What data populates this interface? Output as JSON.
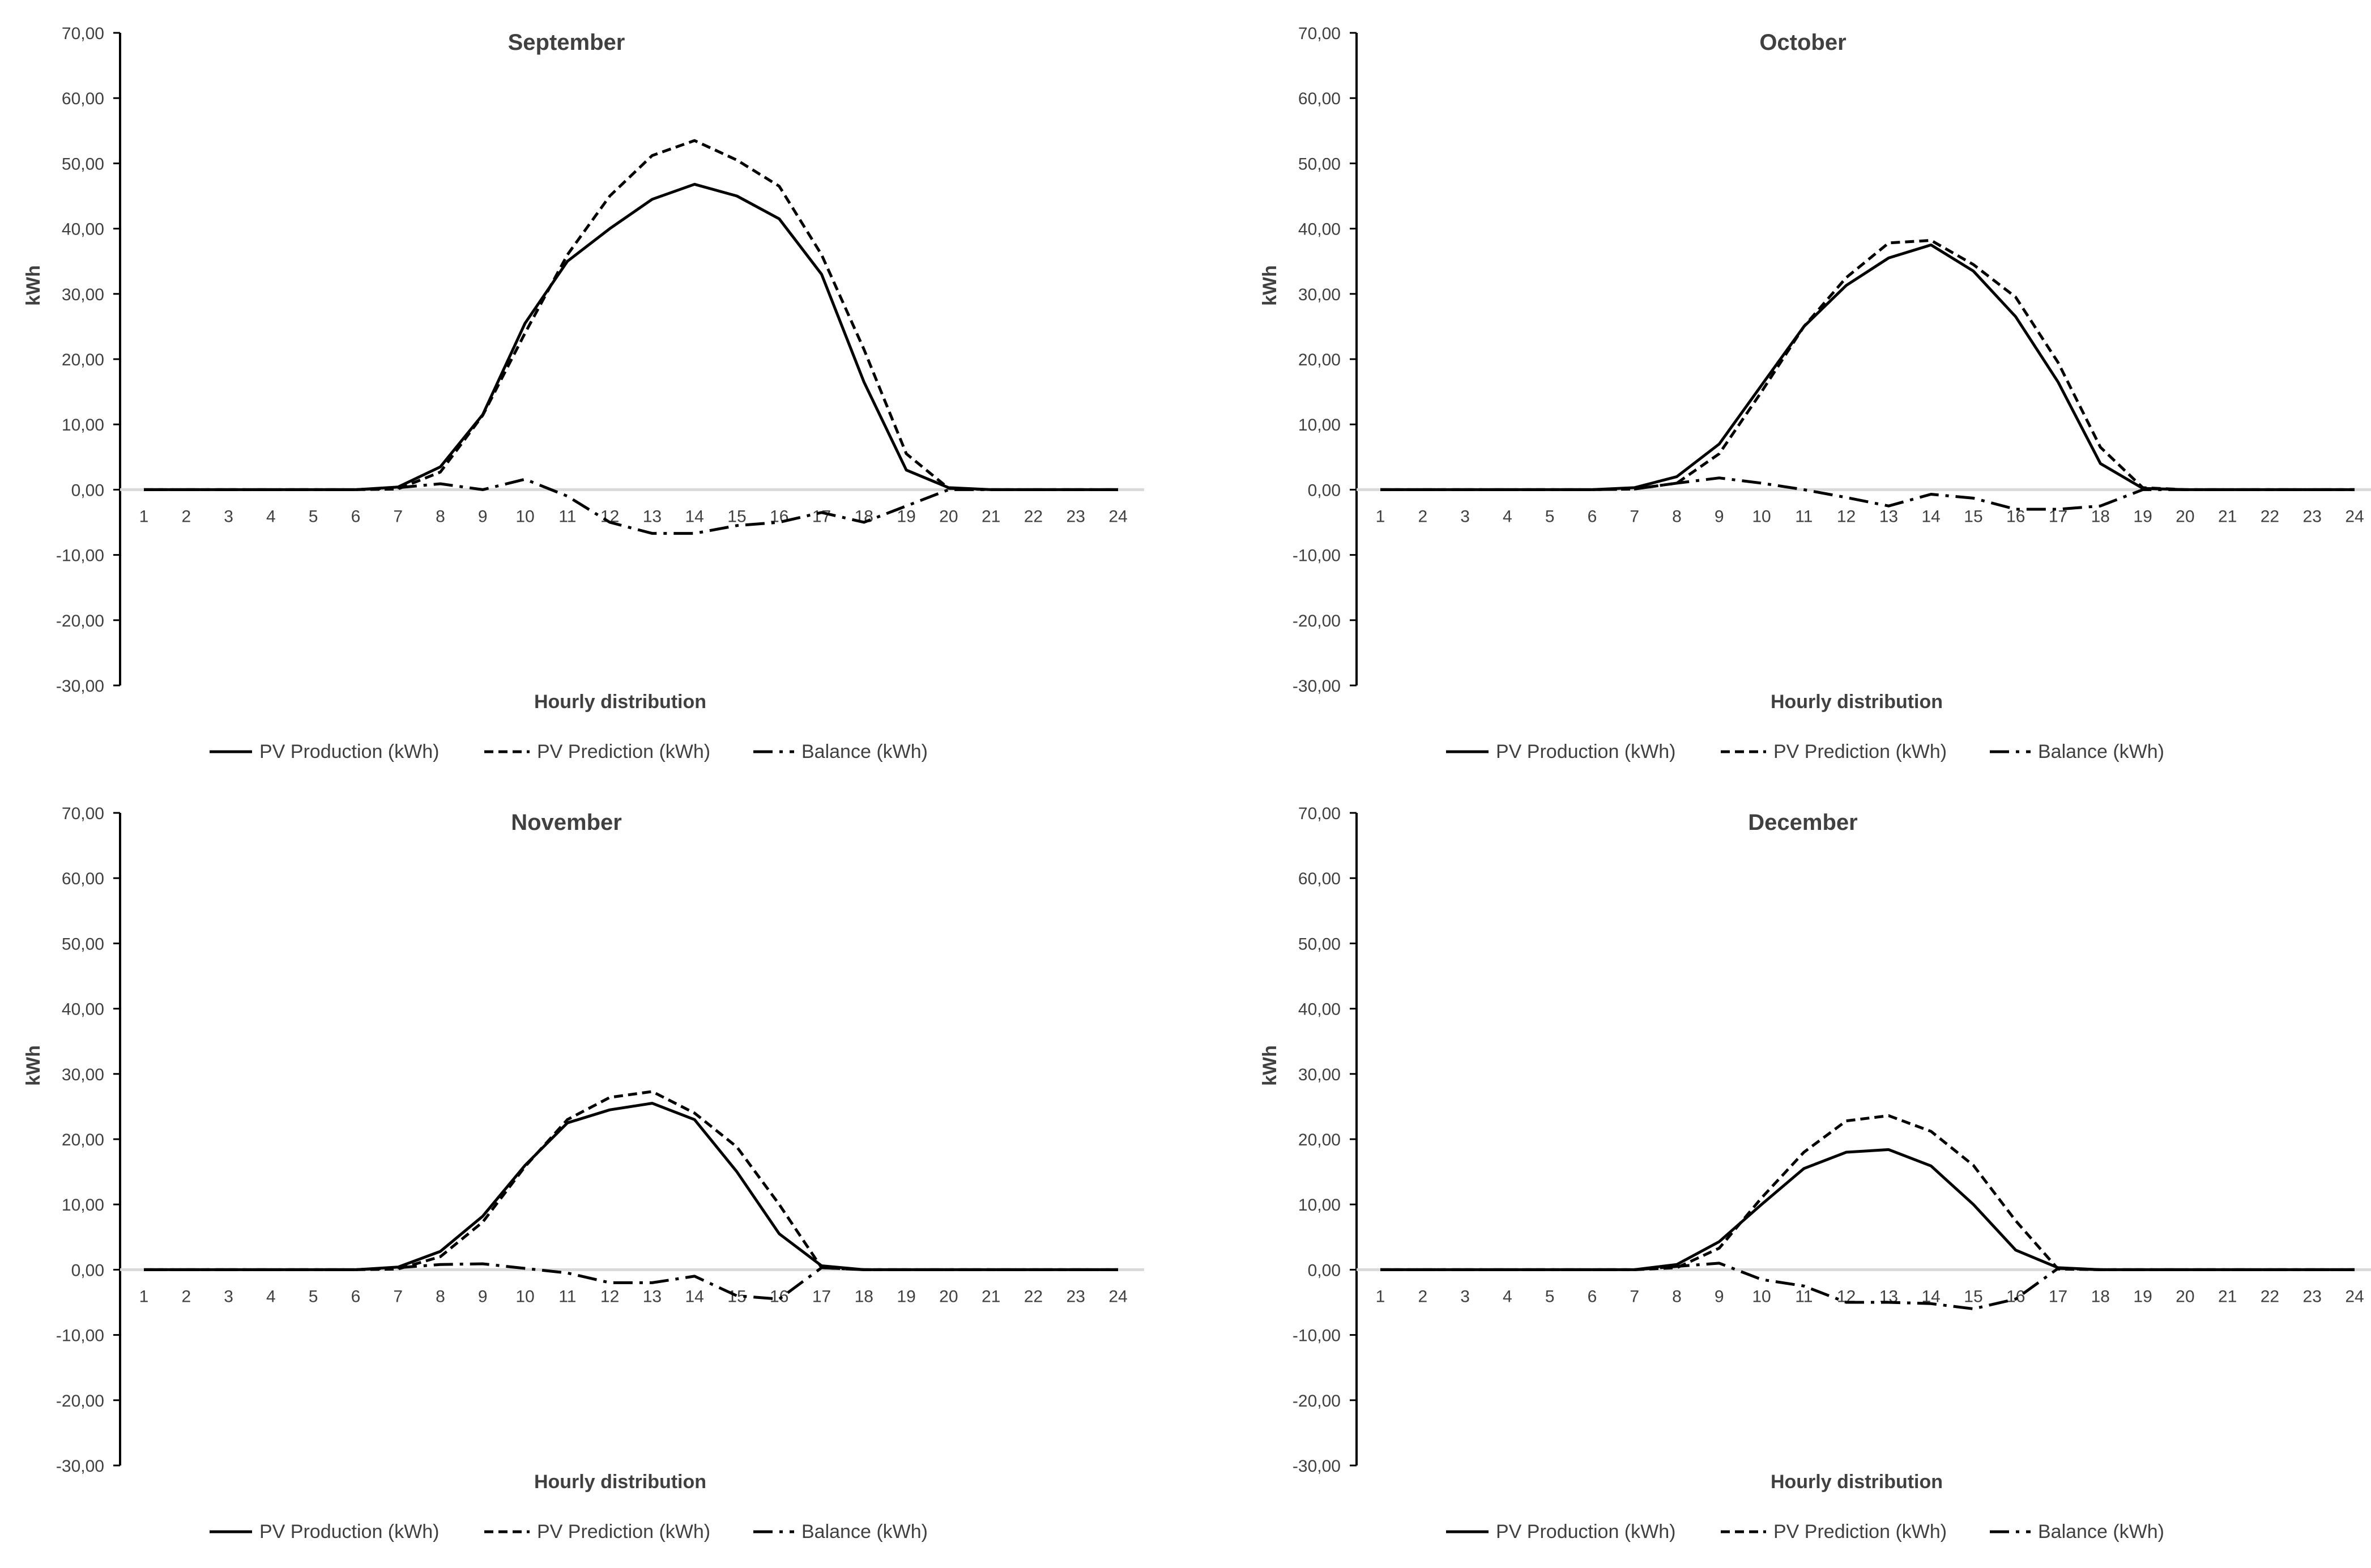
{
  "style": {
    "axis_color": "#000000",
    "zero_line_color": "#d9d9d9",
    "series_color": "#000000",
    "text_color": "#404040",
    "background": "#ffffff"
  },
  "chart_data": [
    {
      "type": "line",
      "title": "September",
      "xlabel": "Hourly distribution",
      "ylabel": "kWh",
      "ylim": [
        -30,
        70
      ],
      "yticks": [
        "-30,00",
        "-20,00",
        "-10,00",
        "0,00",
        "10,00",
        "20,00",
        "30,00",
        "40,00",
        "50,00",
        "60,00",
        "70,00"
      ],
      "categories": [
        "1",
        "2",
        "3",
        "4",
        "5",
        "6",
        "7",
        "8",
        "9",
        "10",
        "11",
        "12",
        "13",
        "14",
        "15",
        "16",
        "17",
        "18",
        "19",
        "20",
        "21",
        "22",
        "23",
        "24"
      ],
      "grid": false,
      "legend_position": "bottom",
      "series": [
        {
          "name": "PV Production (kWh)",
          "dash": "solid",
          "values": [
            0,
            0,
            0,
            0,
            0,
            0,
            0.4,
            3.5,
            11.5,
            25.5,
            35,
            40,
            44.5,
            46.8,
            45,
            41.5,
            33,
            16.5,
            3,
            0.3,
            0,
            0,
            0,
            0
          ]
        },
        {
          "name": "PV Prediction (kWh)",
          "dash": "dashed",
          "values": [
            0,
            0,
            0,
            0,
            0,
            0,
            0.1,
            2.7,
            11.4,
            24,
            36,
            45,
            51.2,
            53.5,
            50.5,
            46.5,
            36,
            21.5,
            5.5,
            0.2,
            0,
            0,
            0,
            0
          ]
        },
        {
          "name": "Balance (kWh)",
          "dash": "dashdot",
          "values": [
            0,
            0,
            0,
            0,
            0,
            0,
            0.3,
            0.9,
            0,
            1.6,
            -1,
            -5,
            -6.7,
            -6.7,
            -5.5,
            -5,
            -3.5,
            -5,
            -2.5,
            0,
            0,
            0,
            0,
            0
          ]
        }
      ]
    },
    {
      "type": "line",
      "title": "October",
      "xlabel": "Hourly distribution",
      "ylabel": "kWh",
      "ylim": [
        -30,
        70
      ],
      "yticks": [
        "-30,00",
        "-20,00",
        "-10,00",
        "0,00",
        "10,00",
        "20,00",
        "30,00",
        "40,00",
        "50,00",
        "60,00",
        "70,00"
      ],
      "categories": [
        "1",
        "2",
        "3",
        "4",
        "5",
        "6",
        "7",
        "8",
        "9",
        "10",
        "11",
        "12",
        "13",
        "14",
        "15",
        "16",
        "17",
        "18",
        "19",
        "20",
        "21",
        "22",
        "23",
        "24"
      ],
      "grid": false,
      "legend_position": "bottom",
      "series": [
        {
          "name": "PV Production (kWh)",
          "dash": "solid",
          "values": [
            0,
            0,
            0,
            0,
            0,
            0,
            0.3,
            2,
            7,
            16,
            25,
            31.3,
            35.5,
            37.5,
            33.5,
            26.5,
            16.5,
            4,
            0.2,
            0,
            0,
            0,
            0,
            0
          ]
        },
        {
          "name": "PV Prediction (kWh)",
          "dash": "dashed",
          "values": [
            0,
            0,
            0,
            0,
            0,
            0,
            0.1,
            1,
            5.5,
            15,
            25,
            32.5,
            37.8,
            38.2,
            34.5,
            29.5,
            19.5,
            6.5,
            0.3,
            0,
            0,
            0,
            0,
            0
          ]
        },
        {
          "name": "Balance (kWh)",
          "dash": "dashdot",
          "values": [
            0,
            0,
            0,
            0,
            0,
            0,
            0.1,
            1,
            1.8,
            1,
            0,
            -1.2,
            -2.5,
            -0.7,
            -1.3,
            -3,
            -3,
            -2.5,
            0,
            0,
            0,
            0,
            0,
            0
          ]
        }
      ]
    },
    {
      "type": "line",
      "title": "November",
      "xlabel": "Hourly distribution",
      "ylabel": "kWh",
      "ylim": [
        -30,
        70
      ],
      "yticks": [
        "-30,00",
        "-20,00",
        "-10,00",
        "0,00",
        "10,00",
        "20,00",
        "30,00",
        "40,00",
        "50,00",
        "60,00",
        "70,00"
      ],
      "categories": [
        "1",
        "2",
        "3",
        "4",
        "5",
        "6",
        "7",
        "8",
        "9",
        "10",
        "11",
        "12",
        "13",
        "14",
        "15",
        "16",
        "17",
        "18",
        "19",
        "20",
        "21",
        "22",
        "23",
        "24"
      ],
      "grid": false,
      "legend_position": "bottom",
      "series": [
        {
          "name": "PV Production (kWh)",
          "dash": "solid",
          "values": [
            0,
            0,
            0,
            0,
            0,
            0,
            0.4,
            2.8,
            8.2,
            16,
            22.5,
            24.5,
            25.5,
            23,
            15,
            5.5,
            0.6,
            0,
            0,
            0,
            0,
            0,
            0,
            0
          ]
        },
        {
          "name": "PV Prediction (kWh)",
          "dash": "dashed",
          "values": [
            0,
            0,
            0,
            0,
            0,
            0,
            0.1,
            2,
            7.3,
            15.8,
            23,
            26.4,
            27.3,
            24,
            18.8,
            10,
            0.3,
            0,
            0,
            0,
            0,
            0,
            0,
            0
          ]
        },
        {
          "name": "Balance (kWh)",
          "dash": "dashdot",
          "values": [
            0,
            0,
            0,
            0,
            0,
            0,
            0.3,
            0.8,
            0.9,
            0.2,
            -0.5,
            -2,
            -2,
            -1,
            -4,
            -4.5,
            0.3,
            0,
            0,
            0,
            0,
            0,
            0,
            0
          ]
        }
      ]
    },
    {
      "type": "line",
      "title": "December",
      "xlabel": "Hourly distribution",
      "ylabel": "kWh",
      "ylim": [
        -30,
        70
      ],
      "yticks": [
        "-30,00",
        "-20,00",
        "-10,00",
        "0,00",
        "10,00",
        "20,00",
        "30,00",
        "40,00",
        "50,00",
        "60,00",
        "70,00"
      ],
      "categories": [
        "1",
        "2",
        "3",
        "4",
        "5",
        "6",
        "7",
        "8",
        "9",
        "10",
        "11",
        "12",
        "13",
        "14",
        "15",
        "16",
        "17",
        "18",
        "19",
        "20",
        "21",
        "22",
        "23",
        "24"
      ],
      "grid": false,
      "legend_position": "bottom",
      "series": [
        {
          "name": "PV Production (kWh)",
          "dash": "solid",
          "values": [
            0,
            0,
            0,
            0,
            0,
            0,
            0,
            0.8,
            4.3,
            10,
            15.5,
            18,
            18.4,
            15.9,
            10,
            3,
            0.3,
            0,
            0,
            0,
            0,
            0,
            0,
            0
          ]
        },
        {
          "name": "PV Prediction (kWh)",
          "dash": "dashed",
          "values": [
            0,
            0,
            0,
            0,
            0,
            0,
            0,
            0.3,
            3.3,
            11,
            18,
            22.8,
            23.6,
            21.2,
            16,
            7.5,
            0.1,
            0,
            0,
            0,
            0,
            0,
            0,
            0
          ]
        },
        {
          "name": "Balance (kWh)",
          "dash": "dashdot",
          "values": [
            0,
            0,
            0,
            0,
            0,
            0,
            0,
            0.5,
            1,
            -1.5,
            -2.5,
            -5,
            -5,
            -5.2,
            -6,
            -4.5,
            0.2,
            0,
            0,
            0,
            0,
            0,
            0,
            0
          ]
        }
      ]
    }
  ]
}
